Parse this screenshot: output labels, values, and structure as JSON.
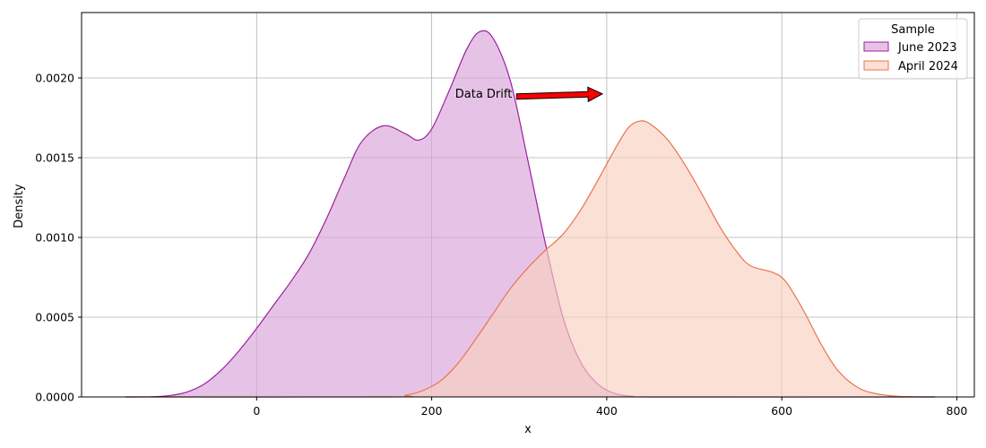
{
  "chart_data": {
    "type": "area",
    "subtype": "kde",
    "xlabel": "x",
    "ylabel": "Density",
    "xlim": [
      -200,
      820
    ],
    "ylim": [
      0,
      0.00241
    ],
    "xticks": [
      0,
      200,
      400,
      600,
      800
    ],
    "xtick_labels": [
      "0",
      "200",
      "400",
      "600",
      "800"
    ],
    "yticks": [
      0,
      0.0005,
      0.001,
      0.0015,
      0.002
    ],
    "ytick_labels": [
      "0.0000",
      "0.0005",
      "0.0010",
      "0.0015",
      "0.0020"
    ],
    "grid": true,
    "legend": {
      "title": "Sample",
      "placement": "top-right"
    },
    "series": [
      {
        "name": "June 2023",
        "line_color": "#9c1fa0",
        "fill_color": "#d9a3d9",
        "points": [
          [
            -150,
            0
          ],
          [
            -120,
            1e-06
          ],
          [
            -100,
            8e-06
          ],
          [
            -80,
            3e-05
          ],
          [
            -60,
            8e-05
          ],
          [
            -40,
            0.00017
          ],
          [
            -20,
            0.00029
          ],
          [
            0,
            0.00043
          ],
          [
            20,
            0.00058
          ],
          [
            40,
            0.00073
          ],
          [
            60,
            0.0009
          ],
          [
            80,
            0.00112
          ],
          [
            100,
            0.00137
          ],
          [
            120,
            0.0016
          ],
          [
            145,
            0.0017
          ],
          [
            170,
            0.00165
          ],
          [
            185,
            0.00161
          ],
          [
            200,
            0.00168
          ],
          [
            220,
            0.00192
          ],
          [
            240,
            0.00218
          ],
          [
            255,
            0.00229
          ],
          [
            270,
            0.00225
          ],
          [
            290,
            0.00198
          ],
          [
            310,
            0.00148
          ],
          [
            330,
            0.00096
          ],
          [
            350,
            0.0005
          ],
          [
            370,
            0.00022
          ],
          [
            390,
            8e-05
          ],
          [
            410,
            2e-05
          ],
          [
            430,
            4e-06
          ],
          [
            460,
            0
          ],
          [
            775,
            0
          ]
        ]
      },
      {
        "name": "April 2024",
        "line_color": "#e8744e",
        "fill_color": "#f9cfbf",
        "points": [
          [
            -150,
            0
          ],
          [
            150,
            0
          ],
          [
            170,
            1e-05
          ],
          [
            190,
            4e-05
          ],
          [
            210,
            0.0001
          ],
          [
            230,
            0.00021
          ],
          [
            250,
            0.00036
          ],
          [
            270,
            0.00052
          ],
          [
            290,
            0.00068
          ],
          [
            310,
            0.00081
          ],
          [
            330,
            0.00092
          ],
          [
            350,
            0.00102
          ],
          [
            370,
            0.00117
          ],
          [
            390,
            0.00136
          ],
          [
            410,
            0.00156
          ],
          [
            425,
            0.00169
          ],
          [
            438,
            0.00173
          ],
          [
            450,
            0.00171
          ],
          [
            470,
            0.00161
          ],
          [
            490,
            0.00145
          ],
          [
            510,
            0.00126
          ],
          [
            530,
            0.00106
          ],
          [
            550,
            0.0009
          ],
          [
            565,
            0.00082
          ],
          [
            590,
            0.00078
          ],
          [
            605,
            0.00072
          ],
          [
            625,
            0.00054
          ],
          [
            645,
            0.00033
          ],
          [
            665,
            0.00016
          ],
          [
            690,
            5e-05
          ],
          [
            720,
            1e-05
          ],
          [
            750,
            1e-06
          ],
          [
            775,
            0
          ]
        ]
      }
    ],
    "annotation": {
      "text": "Data Drift",
      "text_x": 295,
      "text_y": 0.0019,
      "arrow_to_x": 395,
      "arrow_to_y": 0.0019,
      "arrow_color": "#ff0000"
    }
  }
}
